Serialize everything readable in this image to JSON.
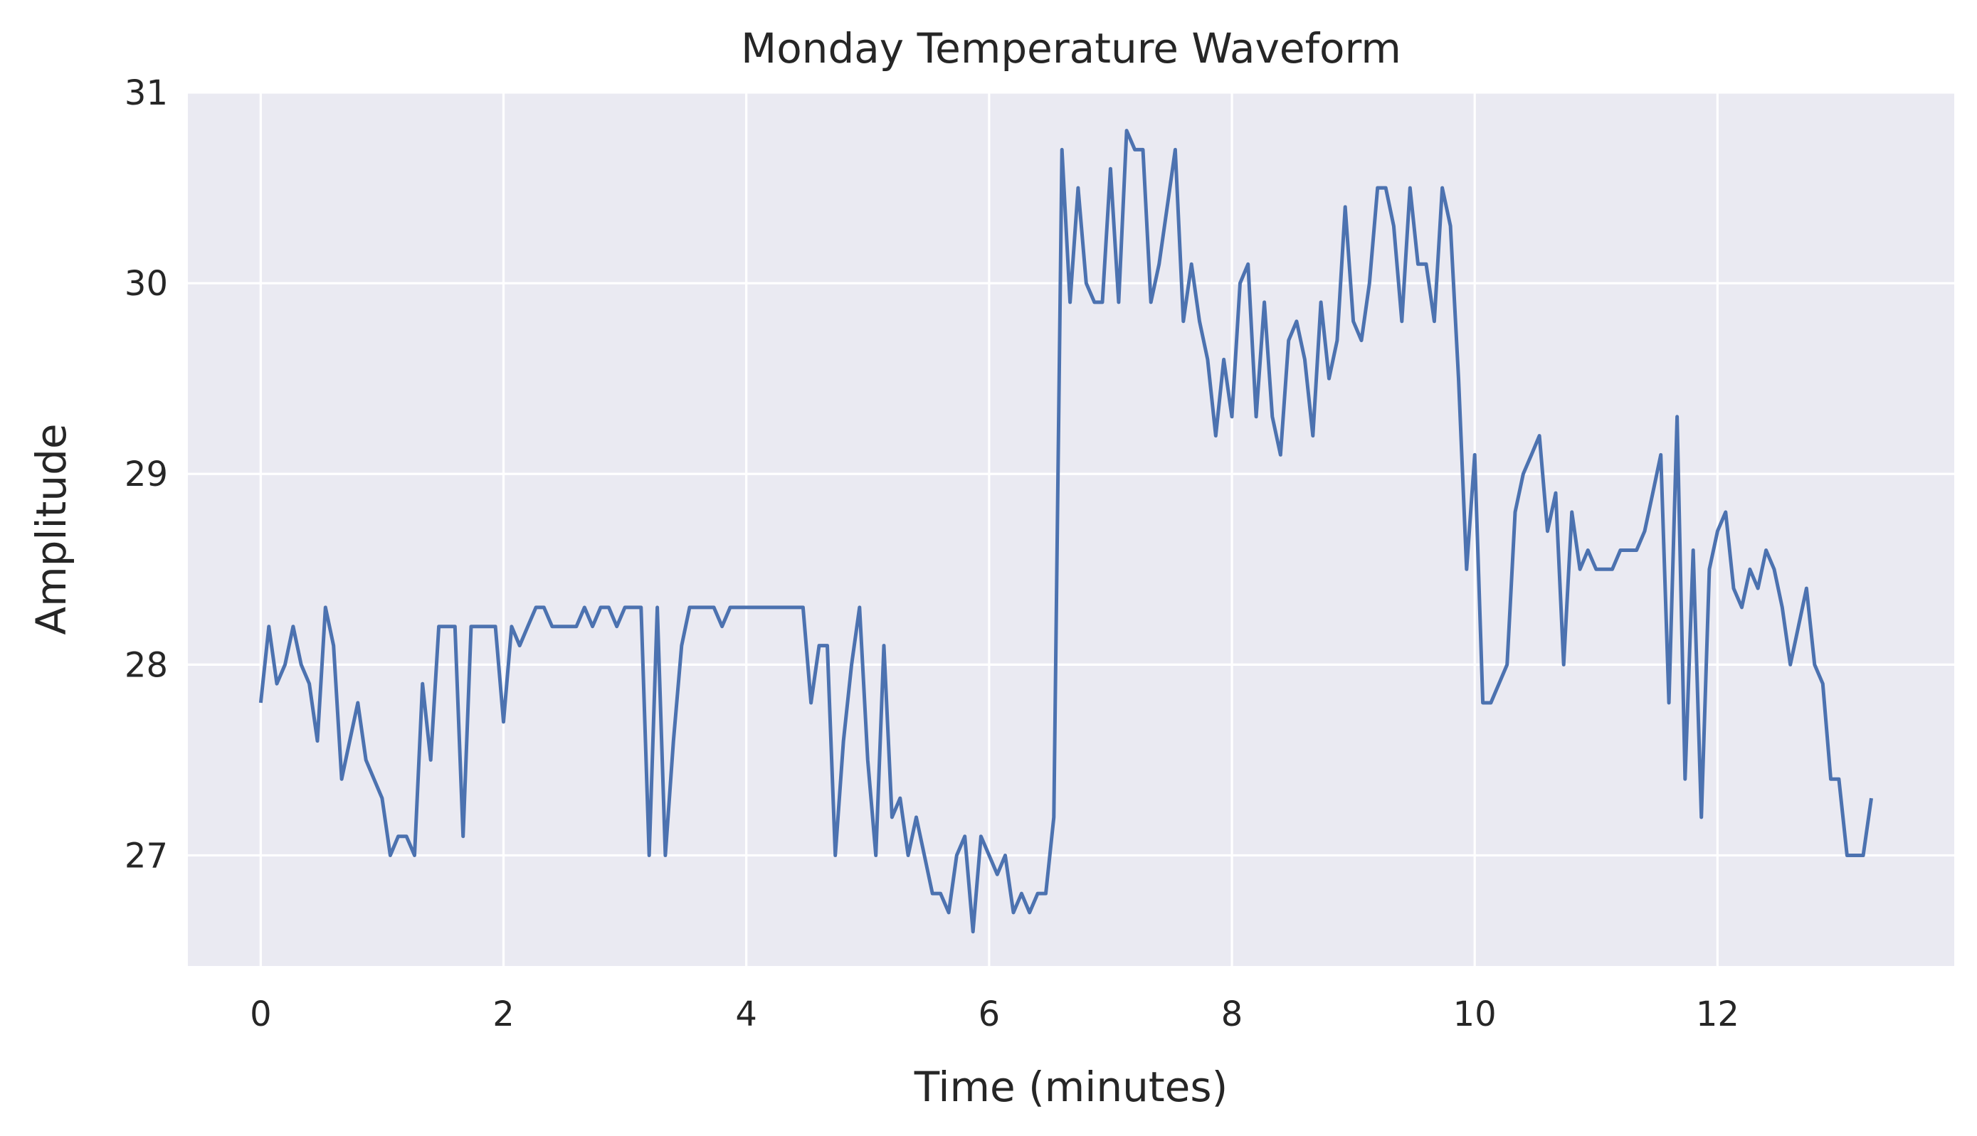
{
  "chart_data": {
    "type": "line",
    "title": "Monday Temperature Waveform",
    "xlabel": "Time (minutes)",
    "ylabel": "Amplitude",
    "xlim": [
      -0.6,
      13.95
    ],
    "ylim": [
      26.42,
      31.0
    ],
    "xticks": [
      "0",
      "2",
      "4",
      "6",
      "8",
      "10",
      "12"
    ],
    "yticks": [
      "27",
      "28",
      "29",
      "30",
      "31"
    ],
    "grid": true,
    "background": "#eaeaf2",
    "line_color": "#4c72b0",
    "series": [
      {
        "name": "",
        "x": [
          0,
          0.067,
          0.133,
          0.2,
          0.267,
          0.333,
          0.4,
          0.467,
          0.533,
          0.6,
          0.667,
          0.733,
          0.8,
          0.867,
          0.933,
          1.0,
          1.067,
          1.133,
          1.2,
          1.267,
          1.333,
          1.4,
          1.467,
          1.533,
          1.6,
          1.667,
          1.733,
          1.8,
          1.867,
          1.933,
          2.0,
          2.067,
          2.133,
          2.2,
          2.267,
          2.333,
          2.4,
          2.467,
          2.533,
          2.6,
          2.667,
          2.733,
          2.8,
          2.867,
          2.933,
          3.0,
          3.067,
          3.133,
          3.2,
          3.267,
          3.333,
          3.4,
          3.467,
          3.533,
          3.6,
          3.667,
          3.733,
          3.8,
          3.867,
          3.933,
          4.0,
          4.067,
          4.133,
          4.2,
          4.267,
          4.333,
          4.4,
          4.467,
          4.533,
          4.6,
          4.667,
          4.733,
          4.8,
          4.867,
          4.933,
          5.0,
          5.067,
          5.133,
          5.2,
          5.267,
          5.333,
          5.4,
          5.467,
          5.533,
          5.6,
          5.667,
          5.733,
          5.8,
          5.867,
          5.933,
          6.0,
          6.067,
          6.133,
          6.2,
          6.267,
          6.333,
          6.4,
          6.467,
          6.533,
          6.6,
          6.667,
          6.733,
          6.8,
          6.867,
          6.933,
          7.0,
          7.067,
          7.133,
          7.2,
          7.267,
          7.333,
          7.4,
          7.467,
          7.533,
          7.6,
          7.667,
          7.733,
          7.8,
          7.867,
          7.933,
          8.0,
          8.067,
          8.133,
          8.2,
          8.267,
          8.333,
          8.4,
          8.467,
          8.533,
          8.6,
          8.667,
          8.733,
          8.8,
          8.867,
          8.933,
          9.0,
          9.067,
          9.133,
          9.2,
          9.267,
          9.333,
          9.4,
          9.467,
          9.533,
          9.6,
          9.667,
          9.733,
          9.8,
          9.867,
          9.933,
          10.0,
          10.067,
          10.133,
          10.2,
          10.267,
          10.333,
          10.4,
          10.467,
          10.533,
          10.6,
          10.667,
          10.733,
          10.8,
          10.867,
          10.933,
          11.0,
          11.067,
          11.133,
          11.2,
          11.267,
          11.333,
          11.4,
          11.467,
          11.533,
          11.6,
          11.667,
          11.733,
          11.8,
          11.867,
          11.933,
          12.0,
          12.067,
          12.133,
          12.2,
          12.267,
          12.333,
          12.4,
          12.467,
          12.533,
          12.6,
          12.667,
          12.733,
          12.8,
          12.867,
          12.933,
          13.0,
          13.067,
          13.133,
          13.2,
          13.267
        ],
        "y": [
          27.8,
          28.2,
          27.9,
          28.0,
          28.2,
          28.0,
          27.9,
          27.6,
          28.3,
          28.1,
          27.4,
          27.6,
          27.8,
          27.5,
          27.4,
          27.3,
          27.0,
          27.1,
          27.1,
          27.0,
          27.9,
          27.5,
          28.2,
          28.2,
          28.2,
          27.1,
          28.2,
          28.2,
          28.2,
          28.2,
          27.7,
          28.2,
          28.1,
          28.2,
          28.3,
          28.3,
          28.2,
          28.2,
          28.2,
          28.2,
          28.3,
          28.2,
          28.3,
          28.3,
          28.2,
          28.3,
          28.3,
          28.3,
          27.0,
          28.3,
          27.0,
          27.6,
          28.1,
          28.3,
          28.3,
          28.3,
          28.3,
          28.2,
          28.3,
          28.3,
          28.3,
          28.3,
          28.3,
          28.3,
          28.3,
          28.3,
          28.3,
          28.3,
          27.8,
          28.1,
          28.1,
          27.0,
          27.6,
          28.0,
          28.3,
          27.5,
          27.0,
          28.1,
          27.2,
          27.3,
          27.0,
          27.2,
          27.0,
          26.8,
          26.8,
          26.7,
          27.0,
          27.1,
          26.6,
          27.1,
          27.0,
          26.9,
          27.0,
          26.7,
          26.8,
          26.7,
          26.8,
          26.8,
          27.2,
          30.7,
          29.9,
          30.5,
          30.0,
          29.9,
          29.9,
          30.6,
          29.9,
          30.8,
          30.7,
          30.7,
          29.9,
          30.1,
          30.4,
          30.7,
          29.8,
          30.1,
          29.8,
          29.6,
          29.2,
          29.6,
          29.3,
          30.0,
          30.1,
          29.3,
          29.9,
          29.3,
          29.1,
          29.7,
          29.8,
          29.6,
          29.2,
          29.9,
          29.5,
          29.7,
          30.4,
          29.8,
          29.7,
          30.0,
          30.5,
          30.5,
          30.3,
          29.8,
          30.5,
          30.1,
          30.1,
          29.8,
          30.5,
          30.3,
          29.5,
          28.5,
          29.1,
          27.8,
          27.8,
          27.9,
          28.0,
          28.8,
          29.0,
          29.1,
          29.2,
          28.7,
          28.9,
          28.0,
          28.8,
          28.5,
          28.6,
          28.5,
          28.5,
          28.5,
          28.6,
          28.6,
          28.6,
          28.7,
          28.9,
          29.1,
          27.8,
          29.3,
          27.4,
          28.6,
          27.2,
          28.5,
          28.7,
          28.8,
          28.4,
          28.3,
          28.5,
          28.4,
          28.6,
          28.5,
          28.3,
          28.0,
          28.2,
          28.4,
          28.0,
          27.9,
          27.4,
          27.4,
          27.0,
          27.0,
          27.0,
          27.3
        ]
      }
    ]
  }
}
